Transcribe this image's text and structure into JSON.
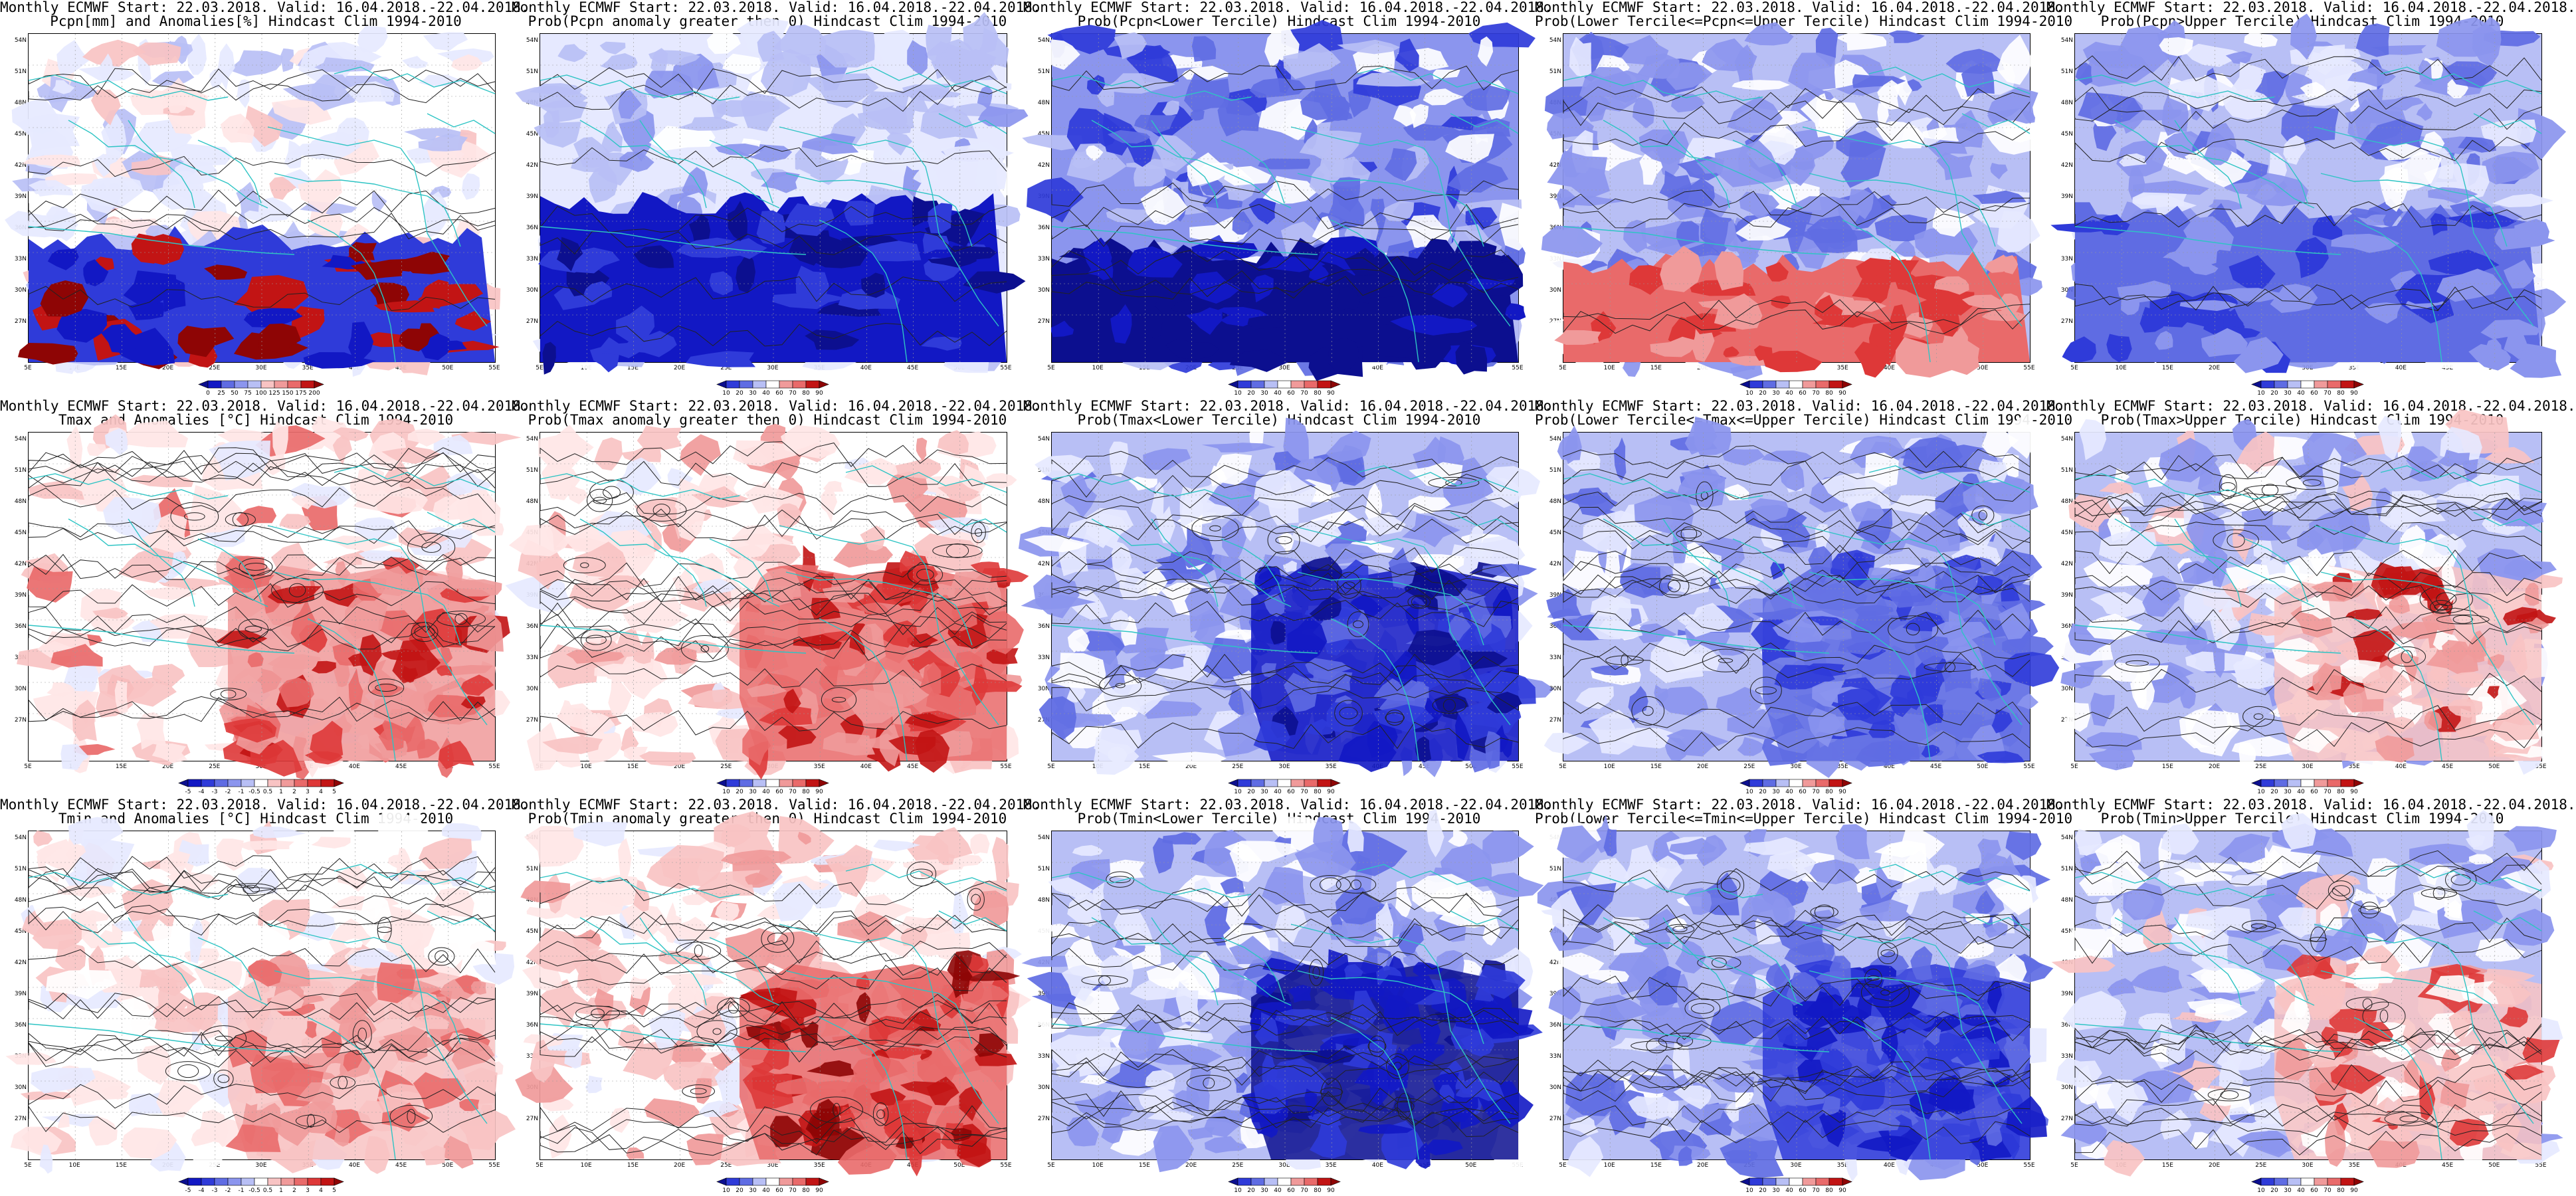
{
  "colors": {
    "blue_scale": [
      "#0c0f8f",
      "#1218c4",
      "#2f3bd9",
      "#5f6ce3",
      "#8b95ee",
      "#b8bff5",
      "#e6e9ff"
    ],
    "red_scale": [
      "#ffe6e6",
      "#f8c3c3",
      "#f09a9a",
      "#e96a6a",
      "#de3838",
      "#c21414",
      "#8e0505"
    ],
    "coast": "#2ec4c4",
    "contour": "#222222"
  },
  "map": {
    "lat_labels": [
      "54N",
      "51N",
      "48N",
      "45N",
      "42N",
      "39N",
      "36N",
      "33N",
      "30N",
      "27N"
    ],
    "lon_labels": [
      "5E",
      "10E",
      "15E",
      "20E",
      "25E",
      "30E",
      "35E",
      "40E",
      "45E",
      "50E",
      "55E"
    ]
  },
  "panels": [
    {
      "name": "pcpn-anomaly",
      "title": [
        "Monthly ECMWF Start: 22.03.2018. Valid: 16.04.2018.-22.04.2018.",
        "Pcpn[mm] and Anomalies[%] Hindcast Clim 1994-2010"
      ],
      "variant": "pcpn-anom",
      "colorbar": [
        "0",
        "25",
        "50",
        "75",
        "100",
        "125",
        "150",
        "175",
        "200"
      ]
    },
    {
      "name": "pcpn-prob-anomaly",
      "title": [
        "Monthly ECMWF Start: 22.03.2018. Valid: 16.04.2018.-22.04.2018.",
        "Prob(Pcpn anomaly greater then 0) Hindcast Clim 1994-2010"
      ],
      "variant": "pcpn-prob",
      "colorbar": [
        "10",
        "20",
        "30",
        "40",
        "60",
        "70",
        "80",
        "90"
      ]
    },
    {
      "name": "pcpn-prob-lower",
      "title": [
        "Monthly ECMWF Start: 22.03.2018. Valid: 16.04.2018.-22.04.2018.",
        "Prob(Pcpn<Lower Tercile) Hindcast Clim 1994-2010"
      ],
      "variant": "pcpn-lower",
      "colorbar": [
        "10",
        "20",
        "30",
        "40",
        "60",
        "70",
        "80",
        "90"
      ]
    },
    {
      "name": "pcpn-prob-middle",
      "title": [
        "Monthly ECMWF Start: 22.03.2018. Valid: 16.04.2018.-22.04.2018.",
        "Prob(Lower Tercile<=Pcpn<=Upper Tercile) Hindcast Clim 1994-2010"
      ],
      "variant": "pcpn-middle",
      "colorbar": [
        "10",
        "20",
        "30",
        "40",
        "60",
        "70",
        "80",
        "90"
      ]
    },
    {
      "name": "pcpn-prob-upper",
      "title": [
        "Monthly ECMWF Start: 22.03.2018. Valid: 16.04.2018.-22.04.2018.",
        "Prob(Pcpn>Upper Tercile) Hindcast Clim 1994-2010"
      ],
      "variant": "pcpn-upper",
      "colorbar": [
        "10",
        "20",
        "30",
        "40",
        "60",
        "70",
        "80",
        "90"
      ]
    },
    {
      "name": "tmax-anomaly",
      "title": [
        "Monthly ECMWF Start: 22.03.2018. Valid: 16.04.2018.-22.04.2018.",
        "Tmax and Anomalies [°C] Hindcast Clim 1994-2010"
      ],
      "variant": "tmax-anom",
      "colorbar": [
        "-5",
        "-4",
        "-3",
        "-2",
        "-1",
        "-0.5",
        "0.5",
        "1",
        "2",
        "3",
        "4",
        "5"
      ]
    },
    {
      "name": "tmax-prob-anomaly",
      "title": [
        "Monthly ECMWF Start: 22.03.2018. Valid: 16.04.2018.-22.04.2018.",
        "Prob(Tmax anomaly greater then 0) Hindcast Clim 1994-2010"
      ],
      "variant": "tmax-prob",
      "colorbar": [
        "10",
        "20",
        "30",
        "40",
        "60",
        "70",
        "80",
        "90"
      ]
    },
    {
      "name": "tmax-prob-lower",
      "title": [
        "Monthly ECMWF Start: 22.03.2018. Valid: 16.04.2018.-22.04.2018.",
        "Prob(Tmax<Lower Tercile) Hindcast Clim 1994-2010"
      ],
      "variant": "tmax-lower",
      "colorbar": [
        "10",
        "20",
        "30",
        "40",
        "60",
        "70",
        "80",
        "90"
      ]
    },
    {
      "name": "tmax-prob-middle",
      "title": [
        "Monthly ECMWF Start: 22.03.2018. Valid: 16.04.2018.-22.04.2018.",
        "Prob(Lower Tercile<=Tmax<=Upper Tercile) Hindcast Clim 1994-2010"
      ],
      "variant": "tmax-middle",
      "colorbar": [
        "10",
        "20",
        "30",
        "40",
        "60",
        "70",
        "80",
        "90"
      ]
    },
    {
      "name": "tmax-prob-upper",
      "title": [
        "Monthly ECMWF Start: 22.03.2018. Valid: 16.04.2018.-22.04.2018.",
        "Prob(Tmax>Upper Tercile) Hindcast Clim 1994-2010"
      ],
      "variant": "tmax-upper",
      "colorbar": [
        "10",
        "20",
        "30",
        "40",
        "60",
        "70",
        "80",
        "90"
      ]
    },
    {
      "name": "tmin-anomaly",
      "title": [
        "Monthly ECMWF Start: 22.03.2018. Valid: 16.04.2018.-22.04.2018.",
        "Tmin and Anomalies [°C] Hindcast Clim 1994-2010"
      ],
      "variant": "tmin-anom",
      "colorbar": [
        "-5",
        "-4",
        "-3",
        "-2",
        "-1",
        "-0.5",
        "0.5",
        "1",
        "2",
        "3",
        "4",
        "5"
      ]
    },
    {
      "name": "tmin-prob-anomaly",
      "title": [
        "Monthly ECMWF Start: 22.03.2018. Valid: 16.04.2018.-22.04.2018.",
        "Prob(Tmin anomaly greater then 0) Hindcast Clim 1994-2010"
      ],
      "variant": "tmin-prob",
      "colorbar": [
        "10",
        "20",
        "30",
        "40",
        "60",
        "70",
        "80",
        "90"
      ]
    },
    {
      "name": "tmin-prob-lower",
      "title": [
        "Monthly ECMWF Start: 22.03.2018. Valid: 16.04.2018.-22.04.2018.",
        "Prob(Tmin<Lower Tercile) Hindcast Clim 1994-2010"
      ],
      "variant": "tmin-lower",
      "colorbar": [
        "10",
        "20",
        "30",
        "40",
        "60",
        "70",
        "80",
        "90"
      ]
    },
    {
      "name": "tmin-prob-middle",
      "title": [
        "Monthly ECMWF Start: 22.03.2018. Valid: 16.04.2018.-22.04.2018.",
        "Prob(Lower Tercile<=Tmin<=Upper Tercile) Hindcast Clim 1994-2010"
      ],
      "variant": "tmin-middle",
      "colorbar": [
        "10",
        "20",
        "30",
        "40",
        "60",
        "70",
        "80",
        "90"
      ]
    },
    {
      "name": "tmin-prob-upper",
      "title": [
        "Monthly ECMWF Start: 22.03.2018. Valid: 16.04.2018.-22.04.2018.",
        "Prob(Tmin>Upper Tercile) Hindcast Clim 1994-2010"
      ],
      "variant": "tmin-upper",
      "colorbar": [
        "10",
        "20",
        "30",
        "40",
        "60",
        "70",
        "80",
        "90"
      ]
    }
  ]
}
